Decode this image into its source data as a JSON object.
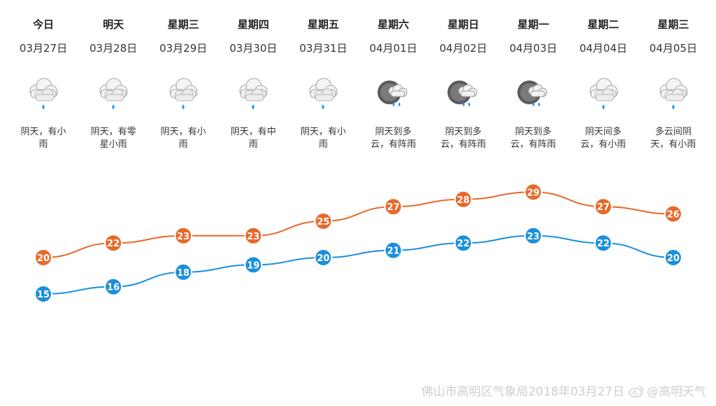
{
  "days": [
    {
      "name": "今日",
      "date": "03月27日",
      "desc": "阴天，有小雨",
      "icon": "cloud-rain-icon",
      "high": 20,
      "low": 15
    },
    {
      "name": "明天",
      "date": "03月28日",
      "desc": "阴天，有零星小雨",
      "icon": "cloud-rain-icon",
      "high": 22,
      "low": 16
    },
    {
      "name": "星期三",
      "date": "03月29日",
      "desc": "阴天，有小雨",
      "icon": "cloud-rain-icon",
      "high": 23,
      "low": 18
    },
    {
      "name": "星期四",
      "date": "03月30日",
      "desc": "阴天，有中雨",
      "icon": "cloud-rain-icon",
      "high": 23,
      "low": 19
    },
    {
      "name": "星期五",
      "date": "03月31日",
      "desc": "阴天，有小雨",
      "icon": "cloud-rain-icon",
      "high": 25,
      "low": 20
    },
    {
      "name": "星期六",
      "date": "04月01日",
      "desc": "阴天到多云，有阵雨",
      "icon": "moon-cloud-shower-icon",
      "high": 27,
      "low": 21
    },
    {
      "name": "星期日",
      "date": "04月02日",
      "desc": "阴天到多云，有阵雨",
      "icon": "moon-cloud-shower-icon",
      "high": 28,
      "low": 22
    },
    {
      "name": "星期一",
      "date": "04月03日",
      "desc": "阴天到多云，有阵雨",
      "icon": "moon-cloud-shower-icon",
      "high": 29,
      "low": 23
    },
    {
      "name": "星期二",
      "date": "04月04日",
      "desc": "阴天间多云，有小雨",
      "icon": "cloud-rain-icon",
      "high": 27,
      "low": 22
    },
    {
      "name": "星期三",
      "date": "04月05日",
      "desc": "多云间阴天，有小雨",
      "icon": "cloud-rain-icon",
      "high": 26,
      "low": 20
    }
  ],
  "chart_data": {
    "type": "line",
    "categories": [
      "03月27日",
      "03月28日",
      "03月29日",
      "03月30日",
      "03月31日",
      "04月01日",
      "04月02日",
      "04月03日",
      "04月04日",
      "04月05日"
    ],
    "series": [
      {
        "values": [
          20,
          22,
          23,
          23,
          25,
          27,
          28,
          29,
          27,
          26
        ],
        "color": "#e8692a"
      },
      {
        "values": [
          15,
          16,
          18,
          19,
          20,
          21,
          22,
          23,
          22,
          20
        ],
        "color": "#1a8fdc"
      }
    ],
    "grid": false,
    "legend": "none"
  },
  "watermark": {
    "text": "佛山市高明区气象局2018年03月27日",
    "account": "@高明天气"
  },
  "colors": {
    "high": "#e8692a",
    "low": "#1a8fdc"
  }
}
